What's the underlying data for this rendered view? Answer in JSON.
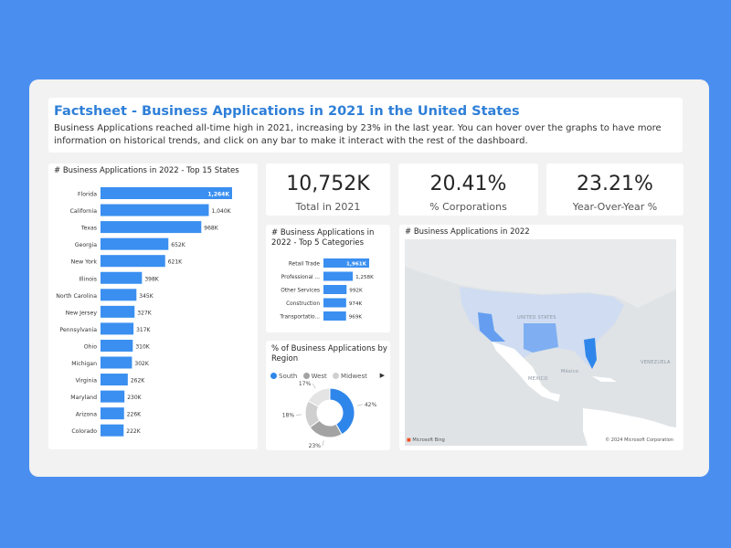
{
  "header": {
    "title": "Factsheet - Business Applications in 2021 in the United States",
    "description": "Business Applications reached all-time high in 2021, increasing by 23% in the last year. You can hover over the graphs to have more information on historical trends, and click on any bar to make it interact with the rest of the dashboard."
  },
  "kpis": [
    {
      "value": "10,752K",
      "label": "Total in 2021"
    },
    {
      "value": "20.41%",
      "label": "% Corporations"
    },
    {
      "value": "23.21%",
      "label": "Year-Over-Year %"
    }
  ],
  "colors": {
    "bar": "#3a8ff0",
    "highlight": "#2e7fd8",
    "south": "#2f86ea",
    "west": "#a3a3a3",
    "midwest": "#cfcfcf",
    "background": "#4a8ff0"
  },
  "map": {
    "title": "# Business Applications in 2022",
    "labels": {
      "us": "UNITED STATES",
      "mexico": "MEXICO",
      "mexico_city": "México",
      "venezuela": "VENEZUELA"
    },
    "attribution": "Microsoft Bing",
    "copyright": "© 2024 Microsoft Corporation"
  },
  "chart_data": [
    {
      "type": "bar",
      "orientation": "horizontal",
      "title": "# Business Applications in 2022 - Top 15 States",
      "categories": [
        "Florida",
        "California",
        "Texas",
        "Georgia",
        "New York",
        "Illinois",
        "North Carolina",
        "New Jersey",
        "Pennsylvania",
        "Ohio",
        "Michigan",
        "Virginia",
        "Maryland",
        "Arizona",
        "Colorado"
      ],
      "values": [
        1264,
        1040,
        968,
        652,
        621,
        398,
        345,
        327,
        317,
        310,
        302,
        262,
        230,
        226,
        222
      ],
      "labels": [
        "1,264K",
        "1,040K",
        "968K",
        "652K",
        "621K",
        "398K",
        "345K",
        "327K",
        "317K",
        "310K",
        "302K",
        "262K",
        "230K",
        "226K",
        "222K"
      ]
    },
    {
      "type": "bar",
      "orientation": "horizontal",
      "title": "# Business Applications in 2022 - Top 5 Categories",
      "categories": [
        "Retail Trade",
        "Professional ...",
        "Other Services",
        "Construction",
        "Transportatio..."
      ],
      "values": [
        1961,
        1258,
        992,
        974,
        969
      ],
      "labels": [
        "1,961K",
        "1,258K",
        "992K",
        "974K",
        "969K"
      ]
    },
    {
      "type": "pie",
      "subtype": "donut",
      "title": "% of Business Applications by Region",
      "legend": [
        "South",
        "West",
        "Midwest"
      ],
      "slices": [
        {
          "name": "South",
          "value": 42,
          "label": "42%"
        },
        {
          "name": "",
          "value": 23,
          "label": "23%"
        },
        {
          "name": "",
          "value": 18,
          "label": "18%"
        },
        {
          "name": "",
          "value": 17,
          "label": "17%"
        }
      ]
    }
  ]
}
